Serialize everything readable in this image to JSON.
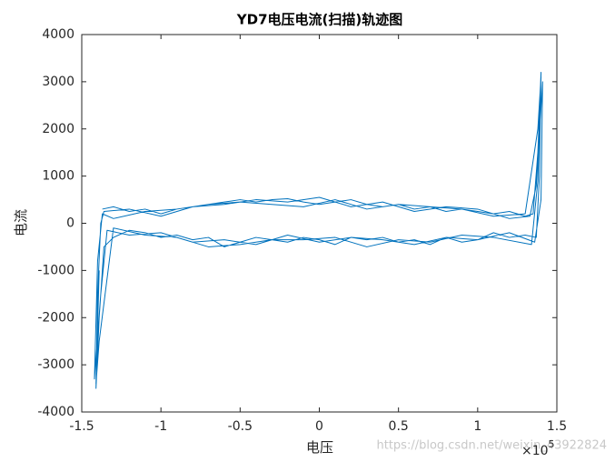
{
  "chart_data": {
    "type": "line",
    "title": "YD7电压电流(扫描)轨迹图",
    "x_label": "电压",
    "y_label": "电流",
    "x_multiplier": {
      "base": "×10",
      "exponent": "5"
    },
    "watermark": "https://blog.csdn.net/weixin_43922824",
    "color": "#0072bd",
    "grid": false,
    "xlim": [
      -1.5,
      1.5
    ],
    "xticks": [
      -1.5,
      -1,
      -0.5,
      0,
      0.5,
      1,
      1.5
    ],
    "ylim": [
      -4000,
      4000
    ],
    "yticks": [
      -4000,
      -3000,
      -2000,
      -1000,
      0,
      1000,
      2000,
      3000,
      4000
    ],
    "x": [
      -1.37,
      -1.3,
      -1.2,
      -1.1,
      -1.0,
      -0.9,
      -0.8,
      -0.7,
      -0.6,
      -0.5,
      -0.4,
      -0.3,
      -0.2,
      -0.1,
      0,
      0.1,
      0.2,
      0.3,
      0.4,
      0.5,
      0.6,
      0.7,
      0.8,
      0.9,
      1.0,
      1.1,
      1.2,
      1.3,
      1.35,
      1.38,
      1.4,
      1.39,
      1.37,
      1.3,
      1.2,
      1.1,
      1.0,
      0.9,
      0.8,
      0.7,
      0.6,
      0.5,
      0.4,
      0.3,
      0.2,
      0.1,
      0,
      -0.1,
      -0.2,
      -0.3,
      -0.4,
      -0.5,
      -0.6,
      -0.7,
      -0.8,
      -0.9,
      -1.0,
      -1.1,
      -1.2,
      -1.3,
      -1.36,
      -1.39,
      -1.41,
      -1.4,
      -1.38,
      -1.36,
      -1.2,
      -1.0,
      -0.8,
      -0.6,
      -0.4,
      -0.2,
      0,
      0.2,
      0.4,
      0.6,
      0.8,
      1.0,
      1.2,
      1.33,
      1.37,
      1.41,
      1.4,
      1.36,
      1.2,
      1.0,
      0.8,
      0.6,
      0.4,
      0.2,
      0,
      -0.2,
      -0.4,
      -0.6,
      -0.8,
      -1.0,
      -1.2,
      -1.34,
      -1.38,
      -1.42,
      -1.4,
      -1.37,
      -1.3,
      -1.1,
      -0.9,
      -0.7,
      -0.5,
      -0.3,
      -0.1,
      0.1,
      0.3,
      0.5,
      0.7,
      0.9,
      1.1,
      1.3,
      1.38,
      1.4,
      1.38,
      1.34,
      1.1,
      0.9,
      0.7,
      0.5,
      0.3,
      0.1,
      -0.1,
      -0.3,
      -0.5,
      -0.7,
      -0.9,
      -1.1,
      -1.3,
      -1.39,
      -1.41,
      -1.39
    ],
    "values": [
      300,
      350,
      250,
      300,
      200,
      300,
      350,
      400,
      450,
      500,
      450,
      500,
      520,
      450,
      400,
      450,
      500,
      400,
      350,
      400,
      300,
      350,
      250,
      300,
      250,
      200,
      250,
      150,
      200,
      1500,
      3200,
      1000,
      -300,
      -250,
      -300,
      -200,
      -350,
      -400,
      -300,
      -450,
      -350,
      -400,
      -300,
      -350,
      -300,
      -450,
      -350,
      -300,
      -400,
      -350,
      -300,
      -400,
      -500,
      -300,
      -350,
      -250,
      -300,
      -200,
      -150,
      -300,
      -500,
      -2000,
      -3500,
      -1500,
      0,
      250,
      300,
      150,
      350,
      400,
      500,
      450,
      550,
      350,
      450,
      250,
      350,
      300,
      100,
      150,
      800,
      3000,
      500,
      -400,
      -200,
      -350,
      -300,
      -450,
      -350,
      -300,
      -400,
      -250,
      -450,
      -350,
      -400,
      -200,
      -250,
      -150,
      -1500,
      -3300,
      -800,
      200,
      100,
      250,
      300,
      400,
      450,
      400,
      350,
      500,
      300,
      400,
      350,
      300,
      150,
      200,
      2000,
      3100,
      900,
      -450,
      -300,
      -250,
      -400,
      -350,
      -500,
      -300,
      -350,
      -350,
      -450,
      -500,
      -300,
      -250,
      -100,
      -2500,
      -3400,
      -1000
    ]
  }
}
